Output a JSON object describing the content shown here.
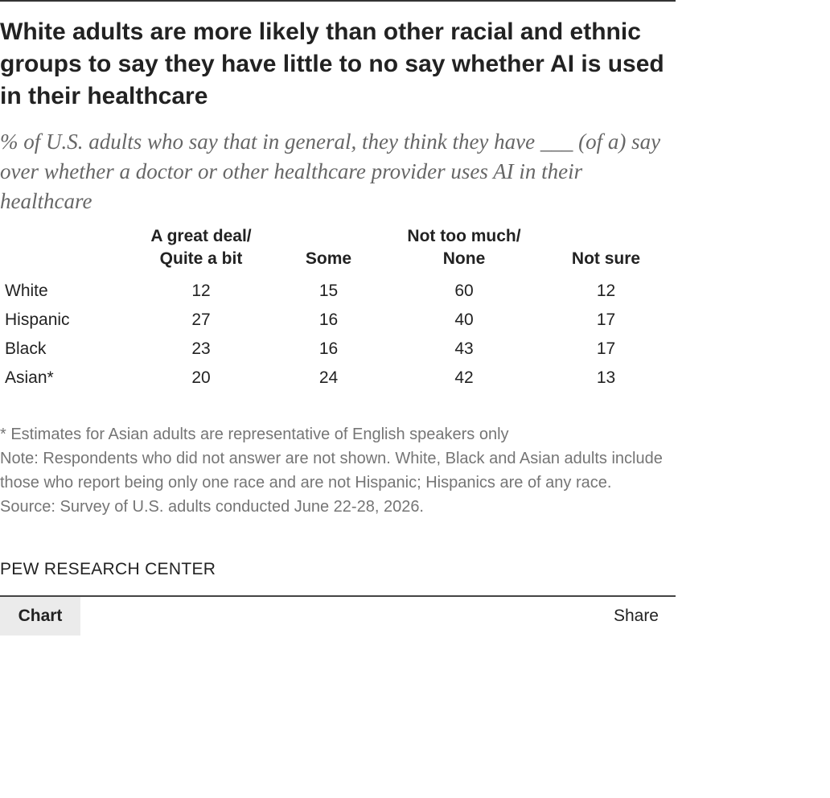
{
  "title": "White adults are more likely than other racial and ethnic groups to say they have little to no say whether AI is used in their healthcare",
  "subtitle": "% of U.S. adults who say that in general, they think they have ___ (of a) say over whether a doctor or other healthcare provider uses AI in their healthcare",
  "chart_data": {
    "type": "table",
    "columns": [
      {
        "line1": "A great deal/",
        "line2": "Quite a bit"
      },
      {
        "line1": "",
        "line2": "Some"
      },
      {
        "line1": "Not too much/",
        "line2": "None"
      },
      {
        "line1": "",
        "line2": "Not sure"
      }
    ],
    "rows": [
      {
        "label": "White",
        "values": [
          "12",
          "15",
          "60",
          "12"
        ]
      },
      {
        "label": "Hispanic",
        "values": [
          "27",
          "16",
          "40",
          "17"
        ]
      },
      {
        "label": "Black",
        "values": [
          "23",
          "16",
          "43",
          "17"
        ]
      },
      {
        "label": "Asian*",
        "values": [
          "20",
          "24",
          "42",
          "13"
        ]
      }
    ]
  },
  "notes": {
    "asterisk": "* Estimates for Asian adults are representative of English speakers only",
    "note": "Note: Respondents who did not answer are not shown. White, Black and Asian adults include those who report being only one race and are not Hispanic; Hispanics are of any race.",
    "source": "Source: Survey of U.S. adults conducted June 22-28, 2026."
  },
  "brand": "PEW RESEARCH CENTER",
  "tabs": {
    "chart": "Chart",
    "share": "Share"
  }
}
